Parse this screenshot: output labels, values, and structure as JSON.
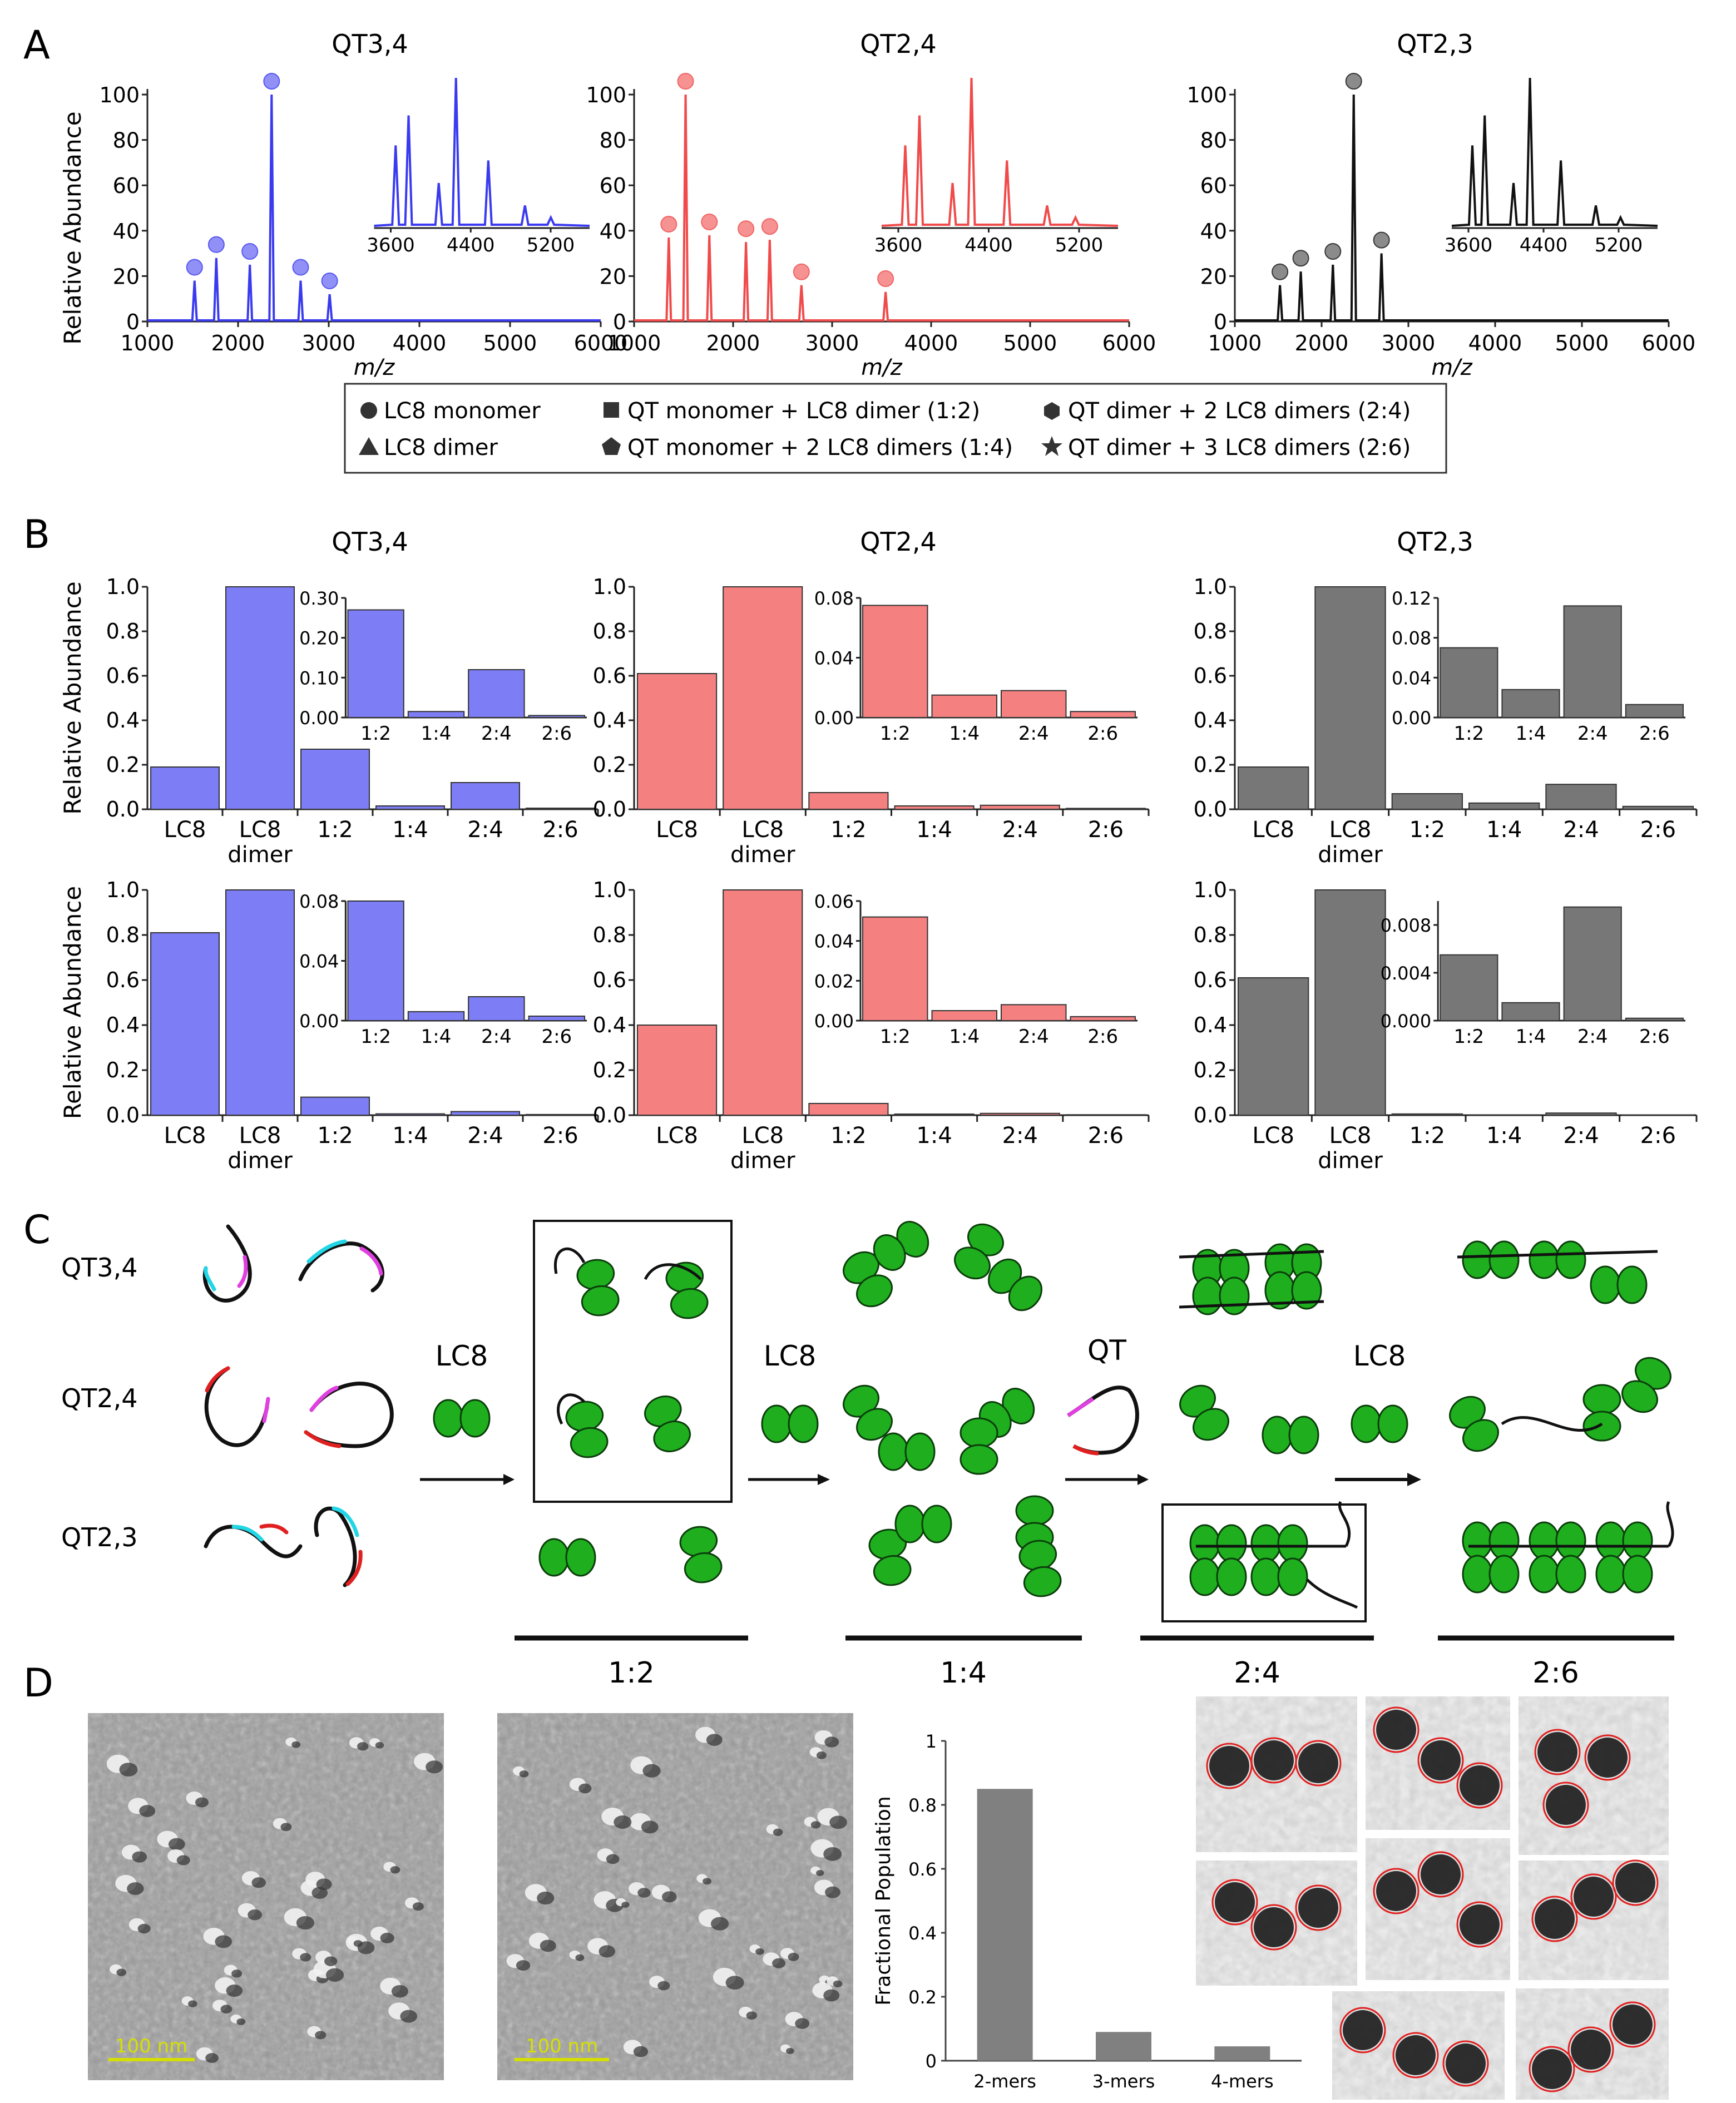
{
  "figure": {
    "panel_labels": [
      "A",
      "B",
      "C",
      "D"
    ]
  },
  "colors": {
    "blue": "#3a3af0",
    "blue_fill": "#7d7df5",
    "red": "#f04a4a",
    "red_fill": "#f58080",
    "gray": "#111111",
    "gray_fill": "#777777",
    "green": "#1eae1e",
    "cyan": "#22d6e6",
    "magenta": "#e040e0",
    "crimson": "#e02020",
    "yellow": "#d6e000"
  },
  "panelA": {
    "ylabel": "Relative Abundance",
    "xlabel": "m/z",
    "y_ticks": [
      "0",
      "20",
      "40",
      "60",
      "80",
      "100"
    ],
    "x_ticks": [
      "1000",
      "2000",
      "3000",
      "4000",
      "5000",
      "6000"
    ],
    "inset_x_ticks": [
      "3600",
      "4400",
      "5200"
    ],
    "spectra": [
      {
        "title": "QT3,4",
        "color_key": "blue",
        "peaks": [
          [
            1520,
            18
          ],
          [
            1760,
            28
          ],
          [
            2130,
            25
          ],
          [
            2370,
            100
          ],
          [
            2690,
            18
          ],
          [
            3010,
            12
          ]
        ]
      },
      {
        "title": "QT2,4",
        "color_key": "red",
        "peaks": [
          [
            1350,
            37
          ],
          [
            1520,
            100
          ],
          [
            1760,
            38
          ],
          [
            2130,
            35
          ],
          [
            2370,
            36
          ],
          [
            2690,
            16
          ],
          [
            3540,
            13
          ]
        ]
      },
      {
        "title": "QT2,3",
        "color_key": "gray",
        "peaks": [
          [
            1520,
            16
          ],
          [
            1760,
            22
          ],
          [
            2130,
            25
          ],
          [
            2370,
            100
          ],
          [
            2690,
            30
          ]
        ]
      }
    ],
    "legend": [
      {
        "symbol": "circle",
        "label": "LC8 monomer"
      },
      {
        "symbol": "triangle",
        "label": "LC8 dimer"
      },
      {
        "symbol": "square",
        "label": "QT monomer + LC8 dimer (1:2)"
      },
      {
        "symbol": "pentagon",
        "label": "QT monomer + 2 LC8 dimers (1:4)"
      },
      {
        "symbol": "hexagon",
        "label": "QT dimer + 2 LC8 dimers (2:4)"
      },
      {
        "symbol": "star",
        "label": "QT dimer + 3 LC8 dimers (2:6)"
      }
    ]
  },
  "chart_data": [
    {
      "type": "bar",
      "panel": "B",
      "title": "QT3,4",
      "row": "top",
      "categories": [
        "LC8",
        "LC8 dimer",
        "1:2",
        "1:4",
        "2:4",
        "2:6"
      ],
      "values": [
        0.19,
        1.0,
        0.27,
        0.015,
        0.12,
        0.005
      ],
      "ylabel": "Relative Abundance",
      "ylim": [
        0,
        1.0
      ],
      "inset": {
        "categories": [
          "1:2",
          "1:4",
          "2:4",
          "2:6"
        ],
        "values": [
          0.27,
          0.015,
          0.12,
          0.005
        ],
        "ylim": [
          0,
          0.3
        ],
        "ticks": [
          "0.00",
          "0.10",
          "0.20",
          "0.30"
        ]
      }
    },
    {
      "type": "bar",
      "panel": "B",
      "title": "QT2,4",
      "row": "top",
      "categories": [
        "LC8",
        "LC8 dimer",
        "1:2",
        "1:4",
        "2:4",
        "2:6"
      ],
      "values": [
        0.61,
        1.0,
        0.075,
        0.015,
        0.018,
        0.004
      ],
      "ylabel": "",
      "ylim": [
        0,
        1.0
      ],
      "inset": {
        "categories": [
          "1:2",
          "1:4",
          "2:4",
          "2:6"
        ],
        "values": [
          0.075,
          0.015,
          0.018,
          0.004
        ],
        "ylim": [
          0,
          0.08
        ],
        "ticks": [
          "0.00",
          "0.04",
          "0.08"
        ]
      }
    },
    {
      "type": "bar",
      "panel": "B",
      "title": "QT2,3",
      "row": "top",
      "categories": [
        "LC8",
        "LC8 dimer",
        "1:2",
        "1:4",
        "2:4",
        "2:6"
      ],
      "values": [
        0.19,
        1.0,
        0.07,
        0.028,
        0.112,
        0.013
      ],
      "ylabel": "",
      "ylim": [
        0,
        1.0
      ],
      "inset": {
        "categories": [
          "1:2",
          "1:4",
          "2:4",
          "2:6"
        ],
        "values": [
          0.07,
          0.028,
          0.112,
          0.013
        ],
        "ylim": [
          0,
          0.12
        ],
        "ticks": [
          "0.00",
          "0.04",
          "0.08",
          "0.12"
        ]
      }
    },
    {
      "type": "bar",
      "panel": "B",
      "title": "",
      "row": "bottom",
      "categories": [
        "LC8",
        "LC8 dimer",
        "1:2",
        "1:4",
        "2:4",
        "2:6"
      ],
      "values": [
        0.81,
        1.0,
        0.08,
        0.006,
        0.016,
        0.003
      ],
      "ylabel": "Relative Abundance",
      "ylim": [
        0,
        1.0
      ],
      "inset": {
        "categories": [
          "1:2",
          "1:4",
          "2:4",
          "2:6"
        ],
        "values": [
          0.08,
          0.006,
          0.016,
          0.003
        ],
        "ylim": [
          0,
          0.08
        ],
        "ticks": [
          "0.00",
          "0.04",
          "0.08"
        ]
      }
    },
    {
      "type": "bar",
      "panel": "B",
      "title": "",
      "row": "bottom",
      "categories": [
        "LC8",
        "LC8 dimer",
        "1:2",
        "1:4",
        "2:4",
        "2:6"
      ],
      "values": [
        0.4,
        1.0,
        0.052,
        0.005,
        0.008,
        0.002
      ],
      "ylabel": "",
      "ylim": [
        0,
        1.0
      ],
      "inset": {
        "categories": [
          "1:2",
          "1:4",
          "2:4",
          "2:6"
        ],
        "values": [
          0.052,
          0.005,
          0.008,
          0.002
        ],
        "ylim": [
          0,
          0.06
        ],
        "ticks": [
          "0.00",
          "0.02",
          "0.04",
          "0.06"
        ]
      }
    },
    {
      "type": "bar",
      "panel": "B",
      "title": "",
      "row": "bottom",
      "categories": [
        "LC8",
        "LC8 dimer",
        "1:2",
        "1:4",
        "2:4",
        "2:6"
      ],
      "values": [
        0.61,
        1.0,
        0.0055,
        0.0015,
        0.0095,
        0.0002
      ],
      "ylabel": "",
      "ylim": [
        0,
        1.0
      ],
      "inset": {
        "categories": [
          "1:2",
          "1:4",
          "2:4",
          "2:6"
        ],
        "values": [
          0.0055,
          0.0015,
          0.0095,
          0.0002
        ],
        "ylim": [
          0,
          0.01
        ],
        "ticks": [
          "0.000",
          "0.004",
          "0.008"
        ]
      }
    },
    {
      "type": "bar",
      "panel": "D",
      "title": "",
      "categories": [
        "2-mers",
        "3-mers",
        "4-mers"
      ],
      "values": [
        0.85,
        0.09,
        0.045
      ],
      "ylabel": "Fractional Population",
      "ylim": [
        0,
        1
      ],
      "ticks": [
        "0",
        "0.2",
        "0.4",
        "0.6",
        "0.8",
        "1"
      ]
    }
  ],
  "panelB": {
    "main_ticks": [
      "0.0",
      "0.2",
      "0.4",
      "0.6",
      "0.8",
      "1.0"
    ],
    "category_labels": [
      "LC8",
      "LC8",
      "1:2",
      "1:4",
      "2:4",
      "2:6"
    ],
    "dimer_sublabel": "dimer"
  },
  "panelC": {
    "rows": [
      "QT3,4",
      "QT2,4",
      "QT2,3"
    ],
    "arrow_labels": [
      "LC8",
      "LC8",
      "QT",
      "LC8"
    ],
    "stage_labels": [
      "1:2",
      "1:4",
      "2:4",
      "2:6"
    ]
  },
  "panelD": {
    "scale_bar": "100 nm"
  }
}
